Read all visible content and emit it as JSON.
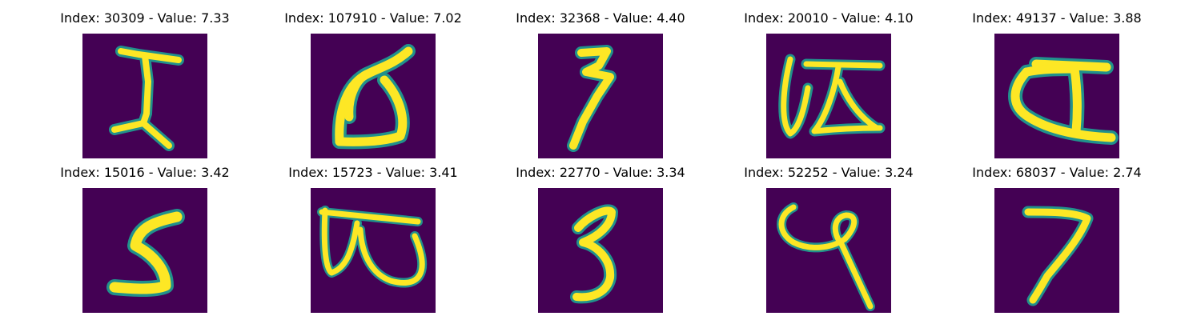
{
  "colors": {
    "background": "#440154",
    "stroke_mid": "#21918c",
    "stroke_core": "#fde725"
  },
  "panels": [
    {
      "title": "Index: 30309 - Value: 7.33",
      "glyph": "I"
    },
    {
      "title": "Index: 107910 - Value: 7.02",
      "glyph": "stylized a-like loop"
    },
    {
      "title": "Index: 32368 - Value: 4.40",
      "glyph": "zigzag z with tail"
    },
    {
      "title": "Index: 20010 - Value: 4.10",
      "glyph": "cursive U with crossbar"
    },
    {
      "title": "Index: 49137 - Value: 3.88",
      "glyph": "looped A-like shape"
    },
    {
      "title": "Index: 15016 - Value: 3.42",
      "glyph": "5"
    },
    {
      "title": "Index: 15723 - Value: 3.41",
      "glyph": "sideways B"
    },
    {
      "title": "Index: 22770 - Value: 3.34",
      "glyph": "3"
    },
    {
      "title": "Index: 52252 - Value: 3.24",
      "glyph": "curly loop with tail"
    },
    {
      "title": "Index: 68037 - Value: 2.74",
      "glyph": "7"
    }
  ]
}
